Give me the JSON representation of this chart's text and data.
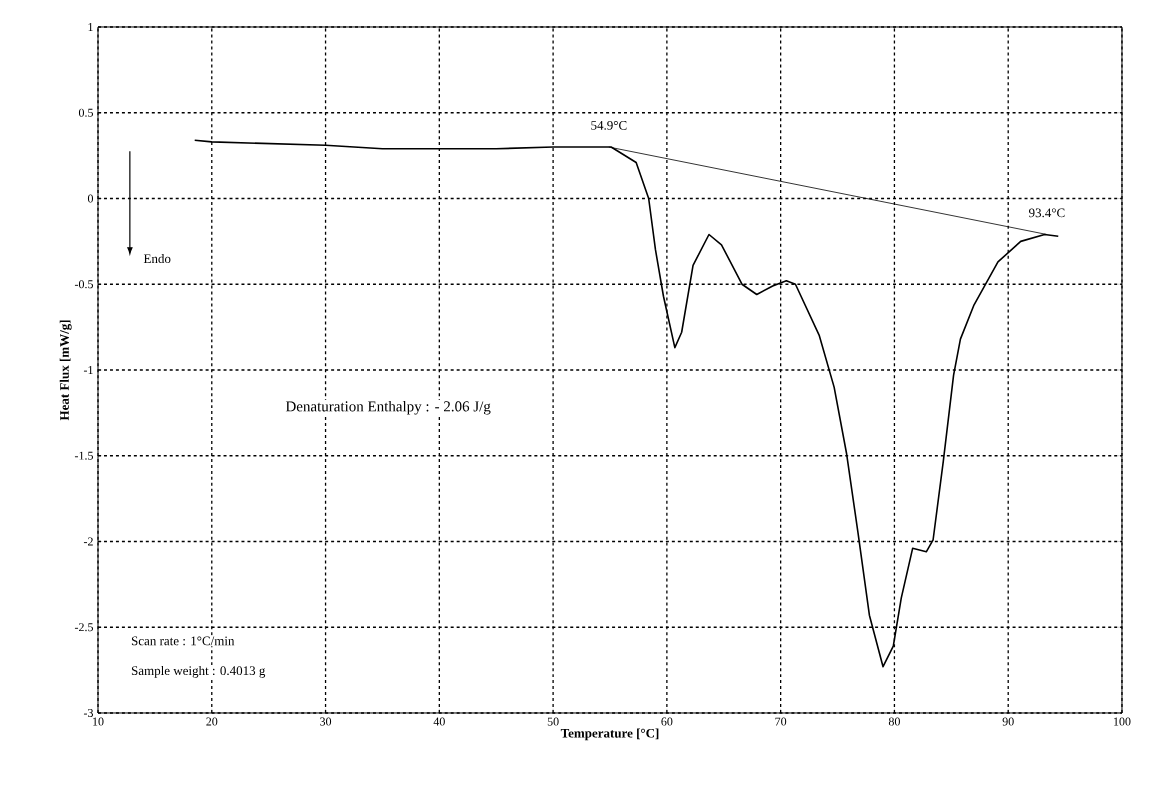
{
  "chart_data": {
    "type": "line",
    "xlabel": "Temperature [°C]",
    "ylabel": "Heat Flux  [mW/g]",
    "xlim": [
      10,
      100
    ],
    "ylim": [
      -3,
      1
    ],
    "xticks": [
      10,
      20,
      30,
      40,
      50,
      60,
      70,
      80,
      90,
      100
    ],
    "yticks": [
      -3,
      -2.5,
      -2,
      -1.5,
      -1,
      -0.5,
      0,
      0.5,
      1
    ],
    "grid": true,
    "line_style": "solid",
    "series": [
      {
        "color": "#000000",
        "x": [
          18.5,
          20,
          25,
          30,
          35,
          40,
          45,
          50,
          53,
          55.1,
          57.3,
          58.4,
          59.0,
          59.7,
          60.7,
          61.3,
          62.3,
          63.7,
          64.8,
          66.6,
          67.9,
          69.3,
          70.5,
          71.3,
          73.4,
          74.7,
          75.8,
          76.8,
          77.8,
          79.0,
          79.9,
          80.6,
          81.6,
          82.8,
          83.4,
          84.3,
          85.2,
          85.8,
          87.0,
          89.1,
          91.1,
          93.2,
          94.4
        ],
        "values": [
          0.34,
          0.33,
          0.32,
          0.31,
          0.29,
          0.29,
          0.29,
          0.3,
          0.3,
          0.3,
          0.21,
          0.0,
          -0.3,
          -0.57,
          -0.87,
          -0.78,
          -0.39,
          -0.21,
          -0.27,
          -0.5,
          -0.56,
          -0.51,
          -0.48,
          -0.5,
          -0.8,
          -1.1,
          -1.49,
          -1.95,
          -2.43,
          -2.73,
          -2.61,
          -2.33,
          -2.04,
          -2.06,
          -1.99,
          -1.53,
          -1.03,
          -0.82,
          -0.62,
          -0.37,
          -0.25,
          -0.21,
          -0.22
        ]
      },
      {
        "color": "#000000",
        "x": [
          54.9,
          93.4
        ],
        "values": [
          0.3,
          -0.21
        ]
      }
    ],
    "annotations": [
      {
        "text": "54.9°C",
        "x": 54.9,
        "y": 0.3
      },
      {
        "text": "93.4°C",
        "x": 93.4,
        "y": -0.21
      },
      "Endo",
      "Denaturation Enthalpy : - 2.06 J/g",
      "Scan rate : 1°C/min",
      "Sample weight : 0.4013 g"
    ]
  }
}
